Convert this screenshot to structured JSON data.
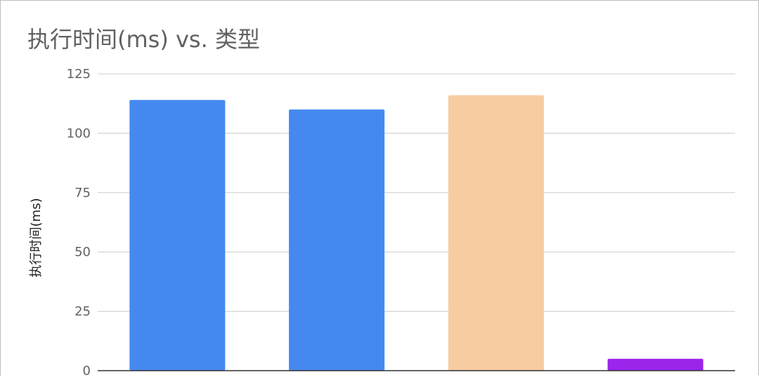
{
  "chart_data": {
    "type": "bar",
    "title": "执行时间(ms) vs. 类型",
    "xlabel": "",
    "ylabel": "执行时间(ms)",
    "ylim": [
      0,
      125
    ],
    "yticks": [
      0,
      25,
      50,
      75,
      100,
      125
    ],
    "grid": true,
    "categories": [
      "",
      "",
      "",
      ""
    ],
    "values": [
      114,
      110,
      116,
      5
    ],
    "colors": [
      "#4589f0",
      "#4589f0",
      "#f6cca0",
      "#9a25eb"
    ]
  }
}
